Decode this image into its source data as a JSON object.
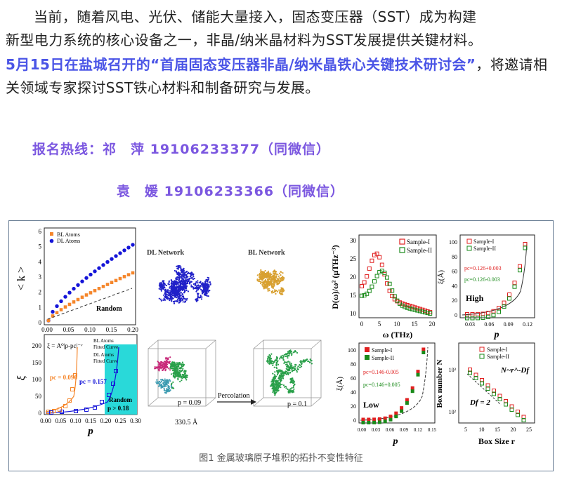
{
  "paragraph1": {
    "line1": "当前，随着风电、光伏、储能大量接入，固态变压器（SST）成为构建",
    "line2": "新型电力系统的核心设备之一，非晶/纳米晶材料为SST发展提供关键材料。"
  },
  "paragraph2": {
    "highlight": "5月15日在盐城召开的“首届固态变压器非晶/纳米晶铁心关键技术研讨会”",
    "rest": "，将邀请相关领域专家探讨SST铁心材料和制备研究与发展。"
  },
  "hotline": {
    "line1": "报名热线：祁　萍 19106233377（同微信）",
    "line2": "袁　媛 19106233366（同微信）"
  },
  "figure": {
    "caption": "图1 金属玻璃原子堆积的拓扑不变性特征",
    "panel_a": {
      "ylabel": "< k >",
      "legend": [
        "BL Atoms",
        "DL Atoms"
      ],
      "annotation": "Random",
      "xticks": [
        "0.00",
        "0.05",
        "0.10",
        "0.15",
        "0.20"
      ],
      "yticks": [
        "0",
        "1",
        "2",
        "3",
        "4",
        "5",
        "6"
      ],
      "colors": {
        "bl": "#f5862b",
        "dl": "#1515d8"
      }
    },
    "panel_b": {
      "ylabel": "ξ",
      "xlabel": "p",
      "formula": "ξ = A⁰|p-pc|⁻ᵛ",
      "legend": [
        "BL Atoms",
        "Fitted Curve",
        "DL Atoms",
        "Fitted Curve"
      ],
      "pc_bl": "pc = 0.096",
      "pc_dl": "pc = 0.157",
      "random_label": "Random",
      "random_cond": "p > 0.18",
      "xticks": [
        "0.00",
        "0.05",
        "0.10",
        "0.15",
        "0.20",
        "0.25",
        "0.30"
      ],
      "yticks": [
        "0",
        "50",
        "100",
        "150",
        "200"
      ]
    },
    "network": {
      "dl_title": "DL Network",
      "bl_title": "BL Network",
      "p_left": "p = 0.09",
      "p_right": "p = 0.1",
      "arrow_label": "Percolation",
      "size_label": "330.5 Å"
    },
    "panel_dos": {
      "ylabel": "D(ω)/ω² (μTHz⁻³)",
      "xlabel": "ω (THz)",
      "legend": [
        "Sample-I",
        "Sample-II"
      ],
      "xticks": [
        "0",
        "5",
        "10",
        "15",
        "20"
      ],
      "yticks": [
        "10",
        "15",
        "20",
        "25",
        "30"
      ]
    },
    "panel_high": {
      "ylabel": "ξ(Å)",
      "xlabel": "p",
      "legend": [
        "Sample-I",
        "Sample-II"
      ],
      "pc1": "pc=0.126+0.003",
      "pc2": "pc=0.126-0.003",
      "label": "High",
      "xticks": [
        "0.03",
        "0.06",
        "0.09",
        "0.12"
      ],
      "yticks": [
        "0",
        "20",
        "40",
        "60",
        "80",
        "100"
      ]
    },
    "panel_low": {
      "ylabel": "ξ(Å)",
      "xlabel": "p",
      "legend": [
        "Sample-I",
        "Sample-II"
      ],
      "pc1": "pc=0.146-0.005",
      "pc2": "pc=0.146+0.005",
      "label": "Low",
      "xticks": [
        "0.00",
        "0.03",
        "0.06",
        "0.09",
        "0.12",
        "0.15"
      ],
      "yticks": [
        "0",
        "20",
        "40",
        "60",
        "80",
        "100"
      ]
    },
    "panel_box": {
      "ylabel": "Box number N",
      "xlabel": "Box Size r",
      "legend": [
        "Sample-I",
        "Sample-II"
      ],
      "powerlaw": "N~r^-Df",
      "df": "Df = 2",
      "xticks": [
        "5",
        "10",
        "15",
        "20",
        "25"
      ],
      "yticks": [
        "10²",
        "10³"
      ]
    }
  }
}
